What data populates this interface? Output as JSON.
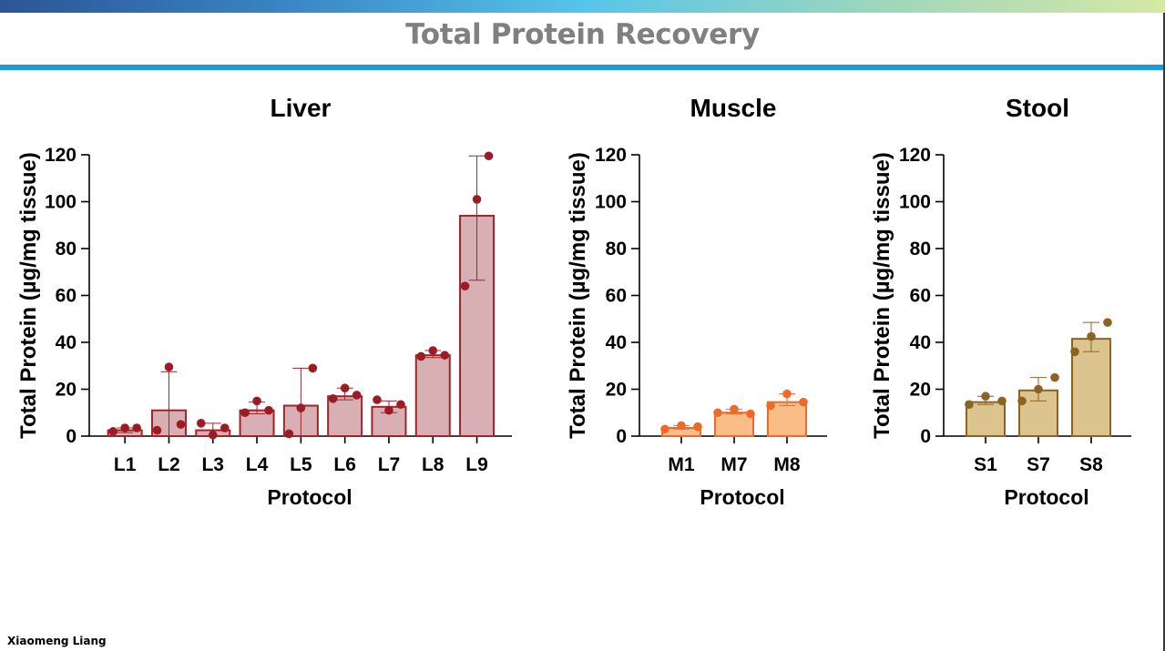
{
  "slide": {
    "title": "Total Protein Recovery",
    "author": "Xiaomeng Liang"
  },
  "chart_data": [
    {
      "type": "bar",
      "title": "Liver",
      "xlabel": "Protocol",
      "ylabel": "Total Protein (µg/mg tissue)",
      "ylim": [
        0,
        120
      ],
      "yticks": [
        0,
        20,
        40,
        60,
        80,
        100,
        120
      ],
      "grid": false,
      "bar_fill": "#d8b0b4",
      "bar_stroke": "#a0242c",
      "point_color": "#9b1c24",
      "categories": [
        "L1",
        "L2",
        "L3",
        "L4",
        "L5",
        "L6",
        "L7",
        "L8",
        "L9"
      ],
      "values": [
        2.5,
        11,
        2.5,
        11,
        13,
        17,
        12.5,
        34.5,
        94
      ],
      "error_upper": [
        3.5,
        27.5,
        5.5,
        14.5,
        29,
        20.5,
        15,
        36.5,
        119.5
      ],
      "error_lower": [
        1.5,
        0,
        0,
        9.5,
        0,
        15.5,
        10,
        33.5,
        66.5
      ],
      "points": [
        [
          2,
          3.5,
          3.5
        ],
        [
          2.5,
          29.5,
          5
        ],
        [
          5.5,
          0.5,
          3.5
        ],
        [
          10,
          15,
          11
        ],
        [
          1,
          12,
          29
        ],
        [
          16,
          20.5,
          17.5
        ],
        [
          15.5,
          11,
          13.5
        ],
        [
          34,
          36.5,
          34.5
        ],
        [
          64,
          101,
          119.5
        ]
      ]
    },
    {
      "type": "bar",
      "title": "Muscle",
      "xlabel": "Protocol",
      "ylabel": "Total Protein (µg/mg tissue)",
      "ylim": [
        0,
        120
      ],
      "yticks": [
        0,
        20,
        40,
        60,
        80,
        100,
        120
      ],
      "grid": false,
      "bar_fill": "#fbbd88",
      "bar_stroke": "#ee6a26",
      "point_color": "#ee6a26",
      "categories": [
        "M1",
        "M7",
        "M8"
      ],
      "values": [
        3.5,
        10,
        14.5
      ],
      "error_upper": [
        4.5,
        11.5,
        18
      ],
      "error_lower": [
        3,
        9.5,
        13
      ],
      "points": [
        [
          3,
          4.5,
          4
        ],
        [
          10,
          11.5,
          9.5
        ],
        [
          13,
          18,
          14.5
        ]
      ]
    },
    {
      "type": "bar",
      "title": "Stool",
      "xlabel": "Protocol",
      "ylabel": "Total Protein (µg/mg tissue)",
      "ylim": [
        0,
        120
      ],
      "yticks": [
        0,
        20,
        40,
        60,
        80,
        100,
        120
      ],
      "grid": false,
      "bar_fill": "#dcc48e",
      "bar_stroke": "#8c6422",
      "point_color": "#8c6422",
      "categories": [
        "S1",
        "S7",
        "S8"
      ],
      "values": [
        14.5,
        19.5,
        41.5
      ],
      "error_upper": [
        17,
        25,
        48.5
      ],
      "error_lower": [
        13.5,
        15,
        36
      ],
      "points": [
        [
          13.5,
          17,
          15
        ],
        [
          15,
          20,
          25
        ],
        [
          36,
          42.5,
          48.5
        ]
      ]
    }
  ]
}
